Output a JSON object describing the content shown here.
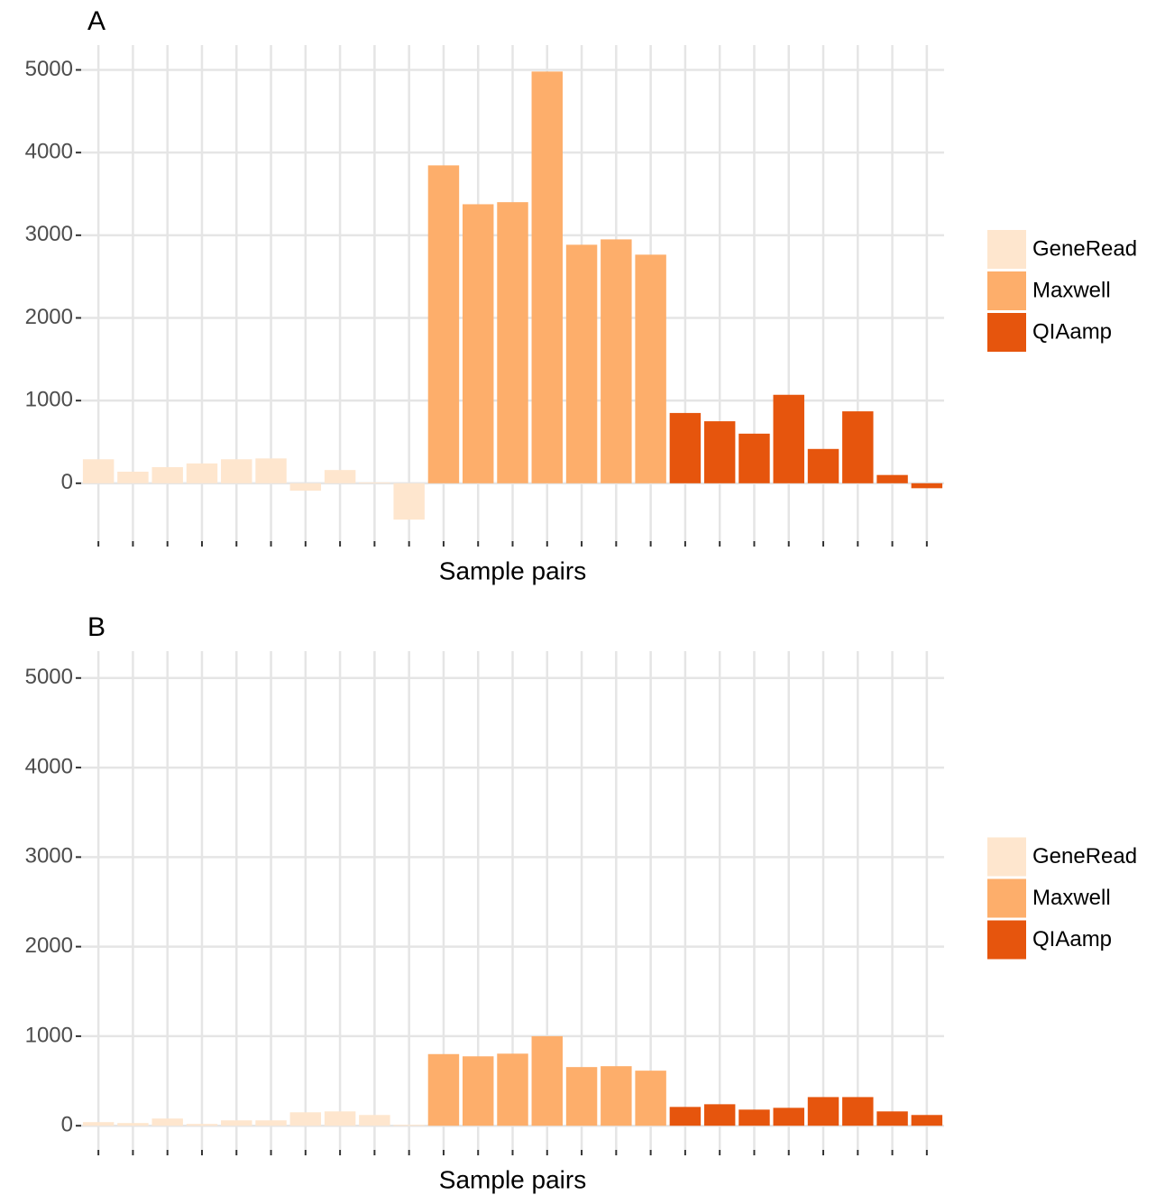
{
  "chart_data": [
    {
      "type": "bar",
      "title": "A",
      "x_label": "Sample pairs",
      "categories": [
        null,
        null,
        null,
        null,
        null,
        null,
        null,
        null,
        null,
        null,
        null,
        null,
        null,
        null,
        null,
        null,
        null,
        null,
        null,
        null,
        null,
        null,
        null,
        null,
        null
      ],
      "series": [
        {
          "name": "GeneRead",
          "color": "#fee6ce",
          "values": [
            290,
            140,
            195,
            240,
            290,
            300,
            -90,
            160,
            10,
            -440,
            null,
            null,
            null,
            null,
            null,
            null,
            null,
            null,
            null,
            null,
            null,
            null,
            null,
            null,
            null
          ]
        },
        {
          "name": "Maxwell",
          "color": "#fdae6b",
          "values": [
            null,
            null,
            null,
            null,
            null,
            null,
            null,
            null,
            null,
            null,
            3845,
            3375,
            3400,
            4980,
            2885,
            2950,
            2765,
            null,
            null,
            null,
            null,
            null,
            null,
            null,
            null
          ]
        },
        {
          "name": "QIAamp",
          "color": "#e6550d",
          "values": [
            null,
            null,
            null,
            null,
            null,
            null,
            null,
            null,
            null,
            null,
            null,
            null,
            null,
            null,
            null,
            null,
            null,
            850,
            750,
            600,
            1070,
            415,
            870,
            100,
            -60
          ]
        }
      ],
      "ylim": [
        -700,
        5300
      ],
      "yticks": [
        0,
        1000,
        2000,
        3000,
        4000,
        5000
      ],
      "grid": true,
      "legend": "right"
    },
    {
      "type": "bar",
      "title": "B",
      "x_label": "Sample pairs",
      "categories": [
        null,
        null,
        null,
        null,
        null,
        null,
        null,
        null,
        null,
        null,
        null,
        null,
        null,
        null,
        null,
        null,
        null,
        null,
        null,
        null,
        null,
        null,
        null,
        null,
        null
      ],
      "series": [
        {
          "name": "GeneRead",
          "color": "#fee6ce",
          "values": [
            40,
            30,
            80,
            20,
            60,
            60,
            150,
            160,
            120,
            10,
            null,
            null,
            null,
            null,
            null,
            null,
            null,
            null,
            null,
            null,
            null,
            null,
            null,
            null,
            null
          ]
        },
        {
          "name": "Maxwell",
          "color": "#fdae6b",
          "values": [
            null,
            null,
            null,
            null,
            null,
            null,
            null,
            null,
            null,
            null,
            800,
            775,
            805,
            1000,
            655,
            665,
            615,
            null,
            null,
            null,
            null,
            null,
            null,
            null,
            null
          ]
        },
        {
          "name": "QIAamp",
          "color": "#e6550d",
          "values": [
            null,
            null,
            null,
            null,
            null,
            null,
            null,
            null,
            null,
            null,
            null,
            null,
            null,
            null,
            null,
            null,
            null,
            210,
            240,
            180,
            200,
            320,
            320,
            160,
            120
          ]
        }
      ],
      "ylim": [
        -270,
        5300
      ],
      "yticks": [
        0,
        1000,
        2000,
        3000,
        4000,
        5000
      ],
      "grid": true,
      "legend": "right"
    }
  ]
}
